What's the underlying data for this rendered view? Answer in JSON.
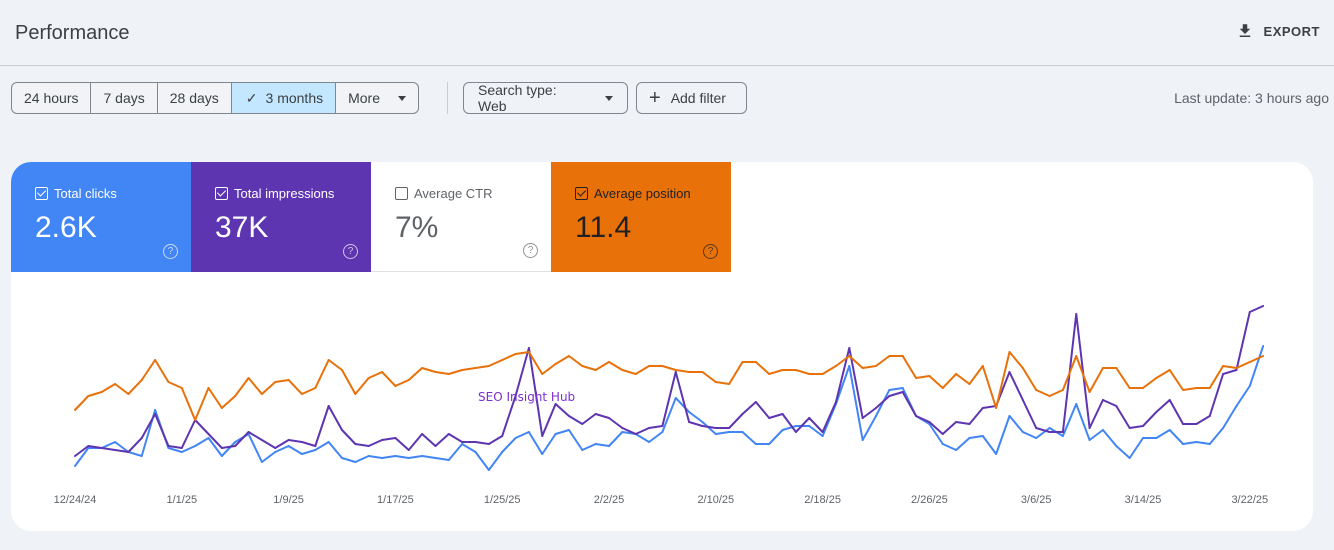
{
  "header": {
    "title": "Performance",
    "export_label": "EXPORT",
    "export_icon": "download-icon"
  },
  "toolbar": {
    "ranges": [
      {
        "label": "24 hours"
      },
      {
        "label": "7 days"
      },
      {
        "label": "28 days"
      },
      {
        "label": "3 months",
        "selected": true
      },
      {
        "label": "More"
      }
    ],
    "search_type": "Search type: Web",
    "add_filter": "Add filter",
    "last_update": "Last update: 3 hours ago"
  },
  "metrics": [
    {
      "label": "Total clicks",
      "value": "2.6K",
      "checked": true,
      "color": "#4285f4"
    },
    {
      "label": "Total impressions",
      "value": "37K",
      "checked": true,
      "color": "#5e35b1"
    },
    {
      "label": "Average CTR",
      "value": "7%",
      "checked": false,
      "color": "#ffffff"
    },
    {
      "label": "Average position",
      "value": "11.4",
      "checked": true,
      "color": "#e8710a"
    }
  ],
  "watermark": "SEO Insight Hub",
  "chart_data": {
    "type": "line",
    "x_start": "12/24/24",
    "x_end": "3/23/25",
    "points_per_series": 90,
    "xticks": [
      "12/24/24",
      "1/1/25",
      "1/9/25",
      "1/17/25",
      "1/25/25",
      "2/2/25",
      "2/10/25",
      "2/18/25",
      "2/26/25",
      "3/6/25",
      "3/14/25",
      "3/22/25"
    ],
    "y_axis_labels": "none (relative scale 0-100 per series)",
    "grid": false,
    "series": [
      {
        "metric": "Total clicks",
        "color": "#4285f4",
        "values": [
          7,
          16,
          16,
          19,
          14,
          12,
          35,
          16,
          14,
          17,
          21,
          12,
          19,
          23,
          9,
          14,
          17,
          13,
          15,
          19,
          11,
          9,
          12,
          11,
          12,
          11,
          12,
          11,
          10,
          18,
          14,
          5,
          14,
          21,
          24,
          13,
          23,
          25,
          15,
          18,
          17,
          24,
          23,
          19,
          24,
          41,
          34,
          29,
          23,
          24,
          24,
          18,
          18,
          25,
          27,
          27,
          22,
          38,
          57,
          20,
          32,
          45,
          46,
          32,
          28,
          18,
          15,
          21,
          22,
          13,
          32,
          24,
          21,
          26,
          22,
          38,
          20,
          25,
          17,
          11,
          21,
          21,
          25,
          18,
          19,
          18,
          26,
          37,
          47,
          67
        ]
      },
      {
        "metric": "Total impressions",
        "color": "#5e35b1",
        "values": [
          12,
          17,
          16,
          15,
          14,
          21,
          33,
          17,
          16,
          30,
          23,
          16,
          17,
          24,
          20,
          16,
          20,
          19,
          17,
          37,
          25,
          18,
          17,
          20,
          21,
          15,
          23,
          17,
          23,
          19,
          19,
          18,
          22,
          42,
          66,
          22,
          38,
          32,
          28,
          33,
          31,
          26,
          23,
          26,
          27,
          54,
          29,
          27,
          26,
          26,
          33,
          39,
          31,
          33,
          24,
          31,
          24,
          39,
          66,
          31,
          36,
          42,
          44,
          32,
          29,
          23,
          29,
          28,
          36,
          37,
          54,
          40,
          26,
          24,
          24,
          83,
          26,
          40,
          37,
          26,
          27,
          34,
          40,
          28,
          28,
          32,
          53,
          55,
          84,
          87
        ]
      },
      {
        "metric": "Average position",
        "color": "#e8710a",
        "values": [
          35,
          42,
          44,
          48,
          43,
          50,
          60,
          49,
          46,
          30,
          46,
          36,
          42,
          51,
          43,
          49,
          50,
          43,
          46,
          60,
          55,
          43,
          51,
          54,
          47,
          50,
          56,
          54,
          53,
          55,
          56,
          57,
          60,
          63,
          64,
          53,
          58,
          62,
          57,
          55,
          59,
          55,
          53,
          57,
          57,
          55,
          54,
          54,
          49,
          48,
          59,
          59,
          53,
          55,
          55,
          53,
          53,
          57,
          62,
          56,
          57,
          62,
          62,
          51,
          52,
          46,
          53,
          48,
          57,
          36,
          64,
          56,
          45,
          42,
          45,
          62,
          44,
          56,
          56,
          46,
          46,
          51,
          55,
          45,
          46,
          46,
          57,
          56,
          59,
          62
        ]
      }
    ]
  }
}
